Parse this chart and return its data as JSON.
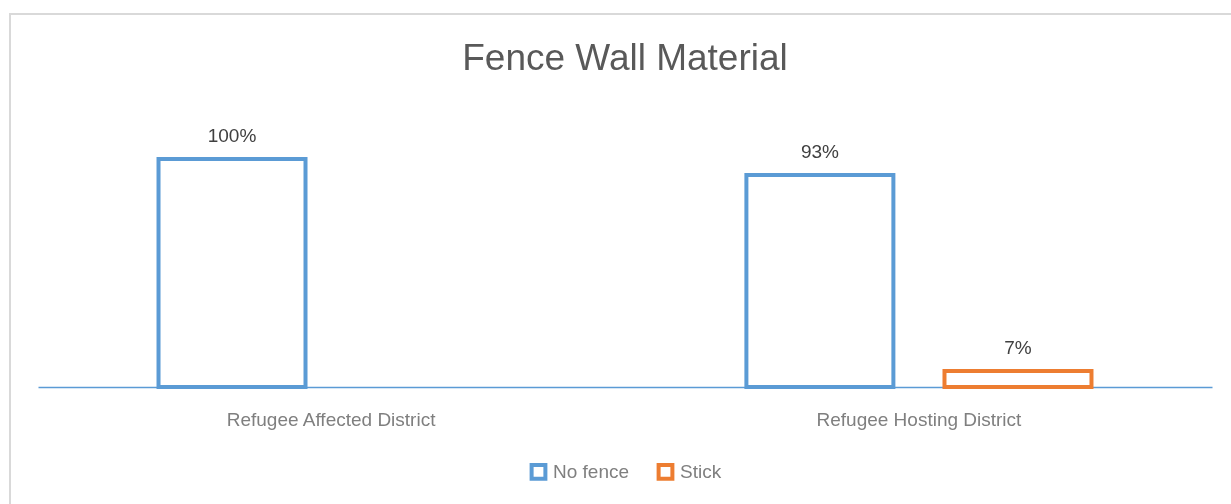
{
  "chart_data": {
    "type": "bar",
    "title": "Fence Wall Material",
    "categories": [
      "Refugee Affected District",
      "Refugee Hosting District"
    ],
    "series": [
      {
        "name": "No fence",
        "color": "#5b9bd5",
        "values": [
          100,
          93
        ],
        "value_labels": [
          "100%",
          "93%"
        ]
      },
      {
        "name": "Stick",
        "color": "#ed7d31",
        "values": [
          null,
          7
        ],
        "value_labels": [
          null,
          "7%"
        ]
      }
    ],
    "legend": "bottom",
    "tick_labels": "x"
  }
}
